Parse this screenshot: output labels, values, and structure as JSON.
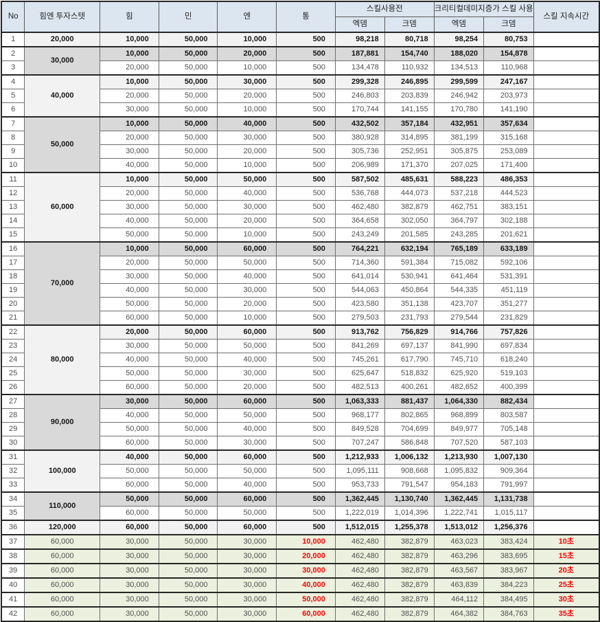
{
  "colors": {
    "header_bg": "#dce6f1",
    "shade_light": "#f2f2f2",
    "shade_dark": "#d9d9d9",
    "shade_green": "#ebf1de",
    "red_text": "#ff0000"
  },
  "header": {
    "no": "No",
    "invest": "힘엔 투자스텟",
    "str": "힘",
    "min": "민",
    "en": "엔",
    "tong": "통",
    "before_skill": "스킬사용전",
    "crit_skill": "크리티컬데미지증가 스킬 사용",
    "atk": "엑뎀",
    "crit": "크뎀",
    "duration": "스킬 지속시간"
  },
  "groups": [
    {
      "invest": "20,000",
      "shade": "light",
      "rows": [
        {
          "no": "1",
          "s": [
            "10,000",
            "50,000",
            "10,000",
            "500"
          ],
          "d": [
            "98,218",
            "80,718",
            "98,254",
            "80,753"
          ],
          "dur": ""
        }
      ]
    },
    {
      "invest": "30,000",
      "shade": "dark",
      "rows": [
        {
          "no": "2",
          "s": [
            "10,000",
            "50,000",
            "20,000",
            "500"
          ],
          "d": [
            "187,881",
            "154,740",
            "188,020",
            "154,878"
          ],
          "dur": ""
        },
        {
          "no": "3",
          "s": [
            "20,000",
            "50,000",
            "10,000",
            "500"
          ],
          "d": [
            "134,478",
            "110,932",
            "134,513",
            "110,968"
          ],
          "dur": ""
        }
      ]
    },
    {
      "invest": "40,000",
      "shade": "light",
      "rows": [
        {
          "no": "4",
          "s": [
            "10,000",
            "50,000",
            "30,000",
            "500"
          ],
          "d": [
            "299,328",
            "246,895",
            "299,599",
            "247,167"
          ],
          "dur": ""
        },
        {
          "no": "5",
          "s": [
            "20,000",
            "50,000",
            "20,000",
            "500"
          ],
          "d": [
            "246,803",
            "203,839",
            "246,942",
            "203,973"
          ],
          "dur": ""
        },
        {
          "no": "6",
          "s": [
            "30,000",
            "50,000",
            "10,000",
            "500"
          ],
          "d": [
            "170,744",
            "141,155",
            "170,780",
            "141,190"
          ],
          "dur": ""
        }
      ]
    },
    {
      "invest": "50,000",
      "shade": "dark",
      "rows": [
        {
          "no": "7",
          "s": [
            "10,000",
            "50,000",
            "40,000",
            "500"
          ],
          "d": [
            "432,502",
            "357,184",
            "432,951",
            "357,634"
          ],
          "dur": ""
        },
        {
          "no": "8",
          "s": [
            "20,000",
            "50,000",
            "30,000",
            "500"
          ],
          "d": [
            "380,928",
            "314,895",
            "381,199",
            "315,168"
          ],
          "dur": ""
        },
        {
          "no": "9",
          "s": [
            "30,000",
            "50,000",
            "20,000",
            "500"
          ],
          "d": [
            "305,736",
            "252,951",
            "305,875",
            "253,089"
          ],
          "dur": ""
        },
        {
          "no": "10",
          "s": [
            "40,000",
            "50,000",
            "10,000",
            "500"
          ],
          "d": [
            "206,989",
            "171,370",
            "207,025",
            "171,400"
          ],
          "dur": ""
        }
      ]
    },
    {
      "invest": "60,000",
      "shade": "light",
      "rows": [
        {
          "no": "11",
          "s": [
            "10,000",
            "50,000",
            "50,000",
            "500"
          ],
          "d": [
            "587,502",
            "485,631",
            "588,223",
            "486,353"
          ],
          "dur": ""
        },
        {
          "no": "12",
          "s": [
            "20,000",
            "50,000",
            "40,000",
            "500"
          ],
          "d": [
            "536,768",
            "444,073",
            "537,218",
            "444,523"
          ],
          "dur": ""
        },
        {
          "no": "13",
          "s": [
            "30,000",
            "50,000",
            "30,000",
            "500"
          ],
          "d": [
            "462,480",
            "382,879",
            "462,751",
            "383,151"
          ],
          "dur": ""
        },
        {
          "no": "14",
          "s": [
            "40,000",
            "50,000",
            "20,000",
            "500"
          ],
          "d": [
            "364,658",
            "302,050",
            "364,797",
            "302,188"
          ],
          "dur": ""
        },
        {
          "no": "15",
          "s": [
            "50,000",
            "50,000",
            "10,000",
            "500"
          ],
          "d": [
            "243,249",
            "201,585",
            "243,285",
            "201,621"
          ],
          "dur": ""
        }
      ]
    },
    {
      "invest": "70,000",
      "shade": "dark",
      "rows": [
        {
          "no": "16",
          "s": [
            "10,000",
            "50,000",
            "60,000",
            "500"
          ],
          "d": [
            "764,221",
            "632,194",
            "765,189",
            "633,189"
          ],
          "dur": ""
        },
        {
          "no": "17",
          "s": [
            "20,000",
            "50,000",
            "50,000",
            "500"
          ],
          "d": [
            "714,360",
            "591,384",
            "715,082",
            "592,106"
          ],
          "dur": ""
        },
        {
          "no": "18",
          "s": [
            "30,000",
            "50,000",
            "40,000",
            "500"
          ],
          "d": [
            "641,014",
            "530,941",
            "641,464",
            "531,391"
          ],
          "dur": ""
        },
        {
          "no": "19",
          "s": [
            "40,000",
            "50,000",
            "30,000",
            "500"
          ],
          "d": [
            "544,063",
            "450,864",
            "544,335",
            "451,119"
          ],
          "dur": ""
        },
        {
          "no": "20",
          "s": [
            "50,000",
            "50,000",
            "20,000",
            "500"
          ],
          "d": [
            "423,580",
            "351,138",
            "423,707",
            "351,277"
          ],
          "dur": ""
        },
        {
          "no": "21",
          "s": [
            "60,000",
            "50,000",
            "10,000",
            "500"
          ],
          "d": [
            "279,503",
            "231,793",
            "279,544",
            "231,829"
          ],
          "dur": ""
        }
      ]
    },
    {
      "invest": "80,000",
      "shade": "light",
      "rows": [
        {
          "no": "22",
          "s": [
            "20,000",
            "50,000",
            "60,000",
            "500"
          ],
          "d": [
            "913,762",
            "756,829",
            "914,766",
            "757,826"
          ],
          "dur": ""
        },
        {
          "no": "23",
          "s": [
            "30,000",
            "50,000",
            "50,000",
            "500"
          ],
          "d": [
            "841,269",
            "697,137",
            "841,990",
            "697,834"
          ],
          "dur": ""
        },
        {
          "no": "24",
          "s": [
            "40,000",
            "50,000",
            "40,000",
            "500"
          ],
          "d": [
            "745,261",
            "617,790",
            "745,710",
            "618,240"
          ],
          "dur": ""
        },
        {
          "no": "25",
          "s": [
            "50,000",
            "50,000",
            "30,000",
            "500"
          ],
          "d": [
            "625,647",
            "518,832",
            "625,920",
            "519,103"
          ],
          "dur": ""
        },
        {
          "no": "26",
          "s": [
            "60,000",
            "50,000",
            "20,000",
            "500"
          ],
          "d": [
            "482,513",
            "400,261",
            "482,652",
            "400,399"
          ],
          "dur": ""
        }
      ]
    },
    {
      "invest": "90,000",
      "shade": "dark",
      "rows": [
        {
          "no": "27",
          "s": [
            "30,000",
            "50,000",
            "60,000",
            "500"
          ],
          "d": [
            "1,063,333",
            "881,437",
            "1,064,330",
            "882,434"
          ],
          "dur": ""
        },
        {
          "no": "28",
          "s": [
            "40,000",
            "50,000",
            "50,000",
            "500"
          ],
          "d": [
            "968,177",
            "802,865",
            "968,899",
            "803,587"
          ],
          "dur": ""
        },
        {
          "no": "29",
          "s": [
            "50,000",
            "50,000",
            "40,000",
            "500"
          ],
          "d": [
            "849,528",
            "704,699",
            "849,977",
            "705,148"
          ],
          "dur": ""
        },
        {
          "no": "30",
          "s": [
            "60,000",
            "50,000",
            "30,000",
            "500"
          ],
          "d": [
            "707,247",
            "586,848",
            "707,520",
            "587,103"
          ],
          "dur": ""
        }
      ]
    },
    {
      "invest": "100,000",
      "shade": "light",
      "rows": [
        {
          "no": "31",
          "s": [
            "40,000",
            "50,000",
            "60,000",
            "500"
          ],
          "d": [
            "1,212,933",
            "1,006,132",
            "1,213,930",
            "1,007,130"
          ],
          "dur": ""
        },
        {
          "no": "32",
          "s": [
            "50,000",
            "50,000",
            "50,000",
            "500"
          ],
          "d": [
            "1,095,111",
            "908,668",
            "1,095,832",
            "909,364"
          ],
          "dur": ""
        },
        {
          "no": "33",
          "s": [
            "60,000",
            "50,000",
            "40,000",
            "500"
          ],
          "d": [
            "953,733",
            "791,547",
            "954,183",
            "791,997"
          ],
          "dur": ""
        }
      ]
    },
    {
      "invest": "110,000",
      "shade": "dark",
      "rows": [
        {
          "no": "34",
          "s": [
            "50,000",
            "50,000",
            "60,000",
            "500"
          ],
          "d": [
            "1,362,445",
            "1,130,740",
            "1,362,445",
            "1,131,738"
          ],
          "dur": ""
        },
        {
          "no": "35",
          "s": [
            "60,000",
            "50,000",
            "50,000",
            "500"
          ],
          "d": [
            "1,222,019",
            "1,014,396",
            "1,222,741",
            "1,015,117"
          ],
          "dur": ""
        }
      ]
    },
    {
      "invest": "120,000",
      "shade": "light",
      "rows": [
        {
          "no": "36",
          "s": [
            "60,000",
            "50,000",
            "60,000",
            "500"
          ],
          "d": [
            "1,512,015",
            "1,255,378",
            "1,513,012",
            "1,256,376"
          ],
          "dur": ""
        }
      ]
    },
    {
      "invest": "60,000",
      "shade": "green",
      "green": true,
      "rows": [
        {
          "no": "37",
          "s": [
            "30,000",
            "50,000",
            "30,000",
            "10,000"
          ],
          "d": [
            "462,480",
            "382,879",
            "463,023",
            "383,424"
          ],
          "dur": "10초"
        }
      ]
    },
    {
      "invest": "60,000",
      "shade": "green",
      "green": true,
      "rows": [
        {
          "no": "38",
          "s": [
            "30,000",
            "50,000",
            "30,000",
            "20,000"
          ],
          "d": [
            "462,480",
            "382,879",
            "463,296",
            "383,695"
          ],
          "dur": "15초"
        }
      ]
    },
    {
      "invest": "60,000",
      "shade": "green",
      "green": true,
      "rows": [
        {
          "no": "39",
          "s": [
            "30,000",
            "50,000",
            "30,000",
            "30,000"
          ],
          "d": [
            "462,480",
            "382,879",
            "463,567",
            "383,967"
          ],
          "dur": "20초"
        }
      ]
    },
    {
      "invest": "60,000",
      "shade": "green",
      "green": true,
      "rows": [
        {
          "no": "40",
          "s": [
            "30,000",
            "50,000",
            "30,000",
            "40,000"
          ],
          "d": [
            "462,480",
            "382,879",
            "463,839",
            "384,223"
          ],
          "dur": "25초"
        }
      ]
    },
    {
      "invest": "60,000",
      "shade": "green",
      "green": true,
      "rows": [
        {
          "no": "41",
          "s": [
            "30,000",
            "50,000",
            "30,000",
            "50,000"
          ],
          "d": [
            "462,480",
            "382,879",
            "464,112",
            "384,495"
          ],
          "dur": "30초"
        }
      ]
    },
    {
      "invest": "60,000",
      "shade": "green",
      "green": true,
      "rows": [
        {
          "no": "42",
          "s": [
            "30,000",
            "50,000",
            "30,000",
            "60,000"
          ],
          "d": [
            "462,480",
            "382,879",
            "464,382",
            "384,763"
          ],
          "dur": "35초"
        }
      ]
    }
  ]
}
